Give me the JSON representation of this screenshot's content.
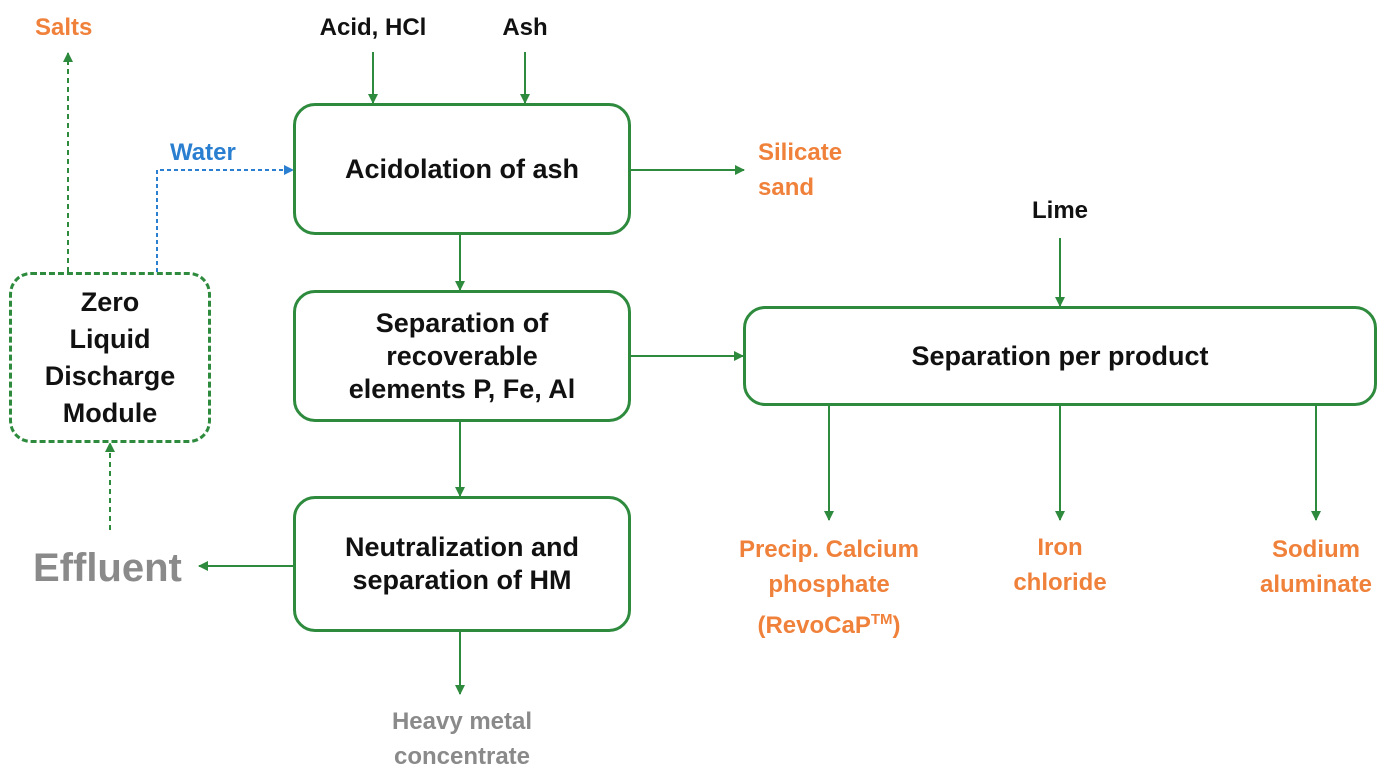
{
  "boxes": {
    "acidolation": "Acidolation of ash",
    "separation_recoverable": "Separation of\nrecoverable\nelements P, Fe, Al",
    "neutralization": "Neutralization and\nseparation of HM",
    "separation_per_product": "Separation per product",
    "zld_module": "Zero\nLiquid\nDischarge\nModule"
  },
  "inputs": {
    "acid": "Acid, HCl",
    "ash": "Ash",
    "lime": "Lime",
    "water": "Water",
    "effluent": "Effluent"
  },
  "outputs": {
    "salts": "Salts",
    "silicate_sand": "Silicate\nsand",
    "calcium_phosphate": "Precip. Calcium\nphosphate\n(RevoCaP",
    "calcium_phosphate_tm": "TM",
    "calcium_phosphate_close": ")",
    "iron_chloride": "Iron\nchloride",
    "sodium_aluminate": "Sodium\naluminate",
    "heavy_metal": "Heavy metal\nconcentrate"
  },
  "colors": {
    "flow_line": "#2e8b3e",
    "water_line": "#2a7fd0",
    "product_text": "#f0813a",
    "waste_text": "#8a8a8a",
    "input_text": "#111111"
  }
}
